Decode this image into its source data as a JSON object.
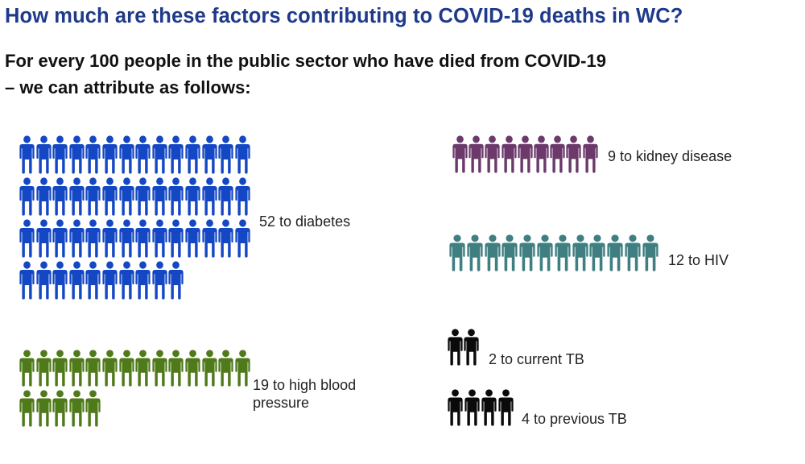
{
  "title": "How much are these factors contributing to COVID-19 deaths in WC?",
  "subtitle": {
    "line1": "For every 100 people in the public sector who have died from COVID-19",
    "line2": "– we can attribute as follows:"
  },
  "factors": [
    {
      "id": "diabetes",
      "count": 52,
      "label": "52 to diabetes",
      "color": "#1447c4",
      "per_row": 14
    },
    {
      "id": "high-blood-pressure",
      "count": 19,
      "label": "19 to high blood pressure",
      "color": "#4f7a1a",
      "per_row": 14
    },
    {
      "id": "kidney-disease",
      "count": 9,
      "label": "9 to kidney disease",
      "color": "#6b3a6b",
      "per_row": 9
    },
    {
      "id": "hiv",
      "count": 12,
      "label": "12 to HIV",
      "color": "#3f7f82",
      "per_row": 12
    },
    {
      "id": "current-tb",
      "count": 2,
      "label": "2 to current TB",
      "color": "#0a0a0a",
      "per_row": 2
    },
    {
      "id": "previous-tb",
      "count": 4,
      "label": "4 to previous TB",
      "color": "#0a0a0a",
      "per_row": 4
    }
  ],
  "icon": "person-icon"
}
